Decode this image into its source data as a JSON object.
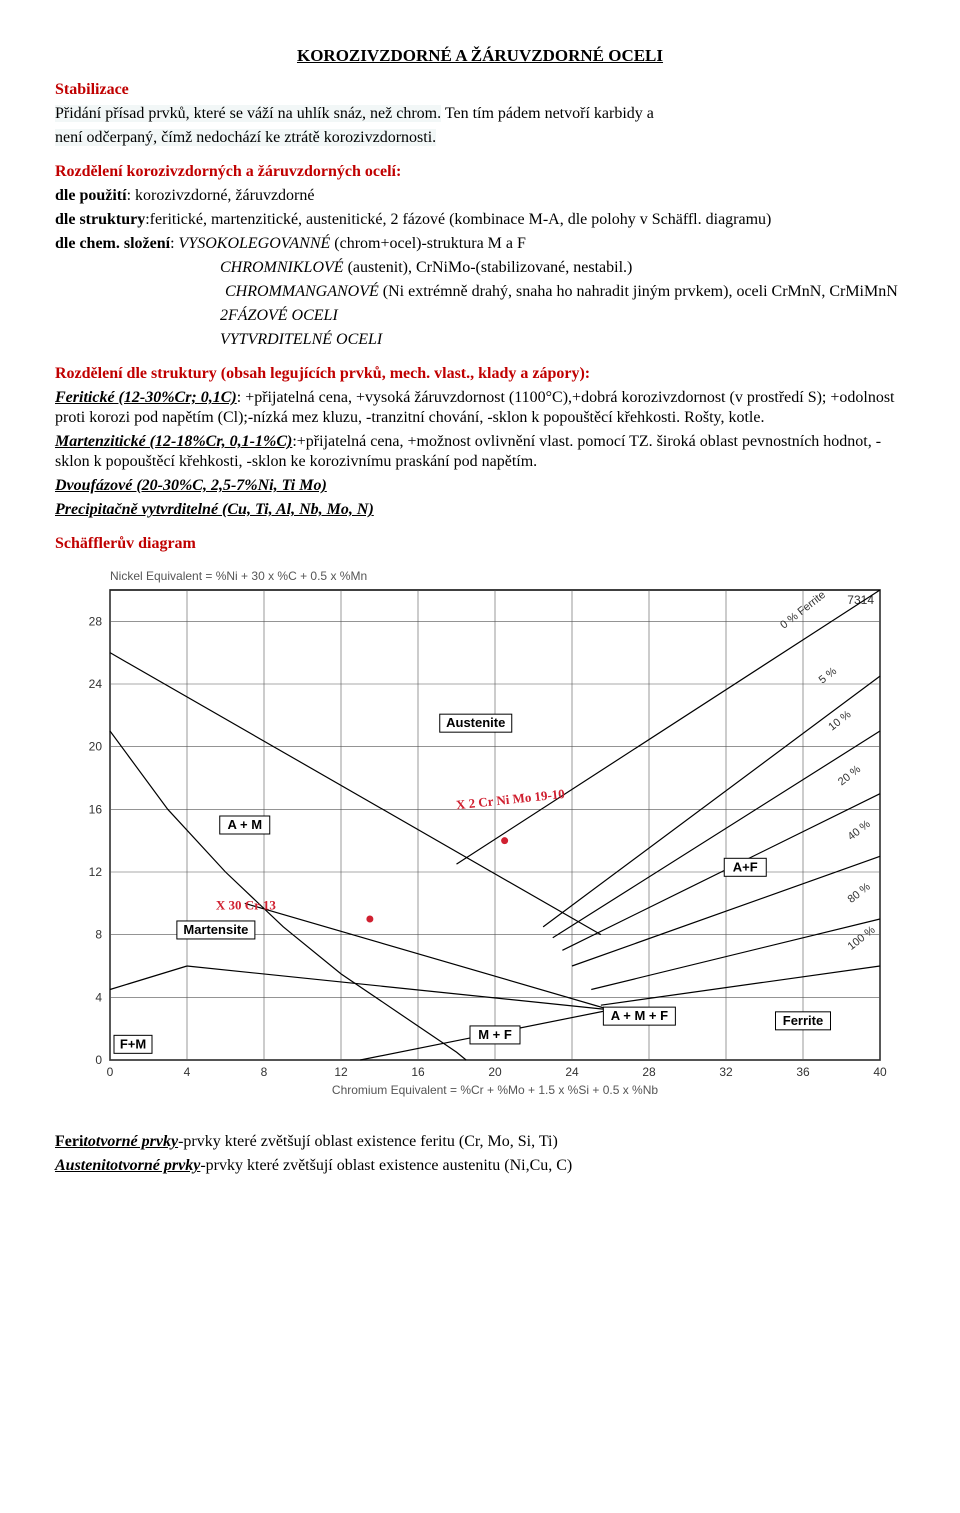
{
  "title": "KOROZIVZDORNÉ A ŽÁRUVZDORNÉ OCELI",
  "stab_h": "Stabilizace",
  "stab_p1": "Přidání přísad prvků, které se váží na uhlík snáz, než chrom.",
  "stab_p2a": "Ten tím pádem netvoří karbidy a",
  "stab_p2b": "není odčerpaný, čímž nedochází ke ztrátě korozivzdornosti.",
  "roz_h": "Rozdělení korozivzdorných a žáruvzdorných ocelí:",
  "roz_l1a": "dle použití",
  "roz_l1b": ": korozivzdorné, žáruvzdorné",
  "roz_l2a": "dle struktury",
  "roz_l2b": ":feritické, martenzitické, austenitické, 2 fázové (kombinace M-A, dle polohy v Schäffl. diagramu)",
  "roz_l3a": "dle chem. složení",
  "roz_l3b": ": ",
  "roz_l3c": "VYSOKOLEGOVANNÉ",
  "roz_l3d": " (chrom+ocel)-struktura M a F",
  "roz_l4a": "CHROMNIKLOVÉ ",
  "roz_l4b": " (austenit), CrNiMo-(stabilizované, nestabil.)",
  "roz_l5a": "CHROMMANGANOVÉ",
  "roz_l5b": " (Ni extrémně drahý, snaha ho nahradit jiným prvkem), oceli CrMnN, CrMiMnN",
  "roz_l6": "2FÁZOVÉ OCELI",
  "roz_l7": "VYTVRDITELNÉ OCELI",
  "rs_h": "Rozdělení dle struktury (obsah legujících prvků, mech. vlast., klady a zápory):",
  "rs_fer_a": "Feritické (12-30%Cr; 0,1C)",
  "rs_fer_b": ": +přijatelná cena, +vysoká žáruvzdornost (1100°C),+dobrá korozivzdornost (v prostředí S); +odolnost proti korozi pod napětím (Cl);-nízká mez kluzu, -tranzitní chování, -sklon k popouštěcí křehkosti. Rošty, kotle.",
  "rs_mar_a": "Martenzitické (12-18%Cr, 0,1-1%C)",
  "rs_mar_b": ":+přijatelná cena, +možnost ovlivnění vlast. pomocí TZ. široká oblast pevnostních hodnot, -sklon k popouštěcí křehkosti, -sklon ke korozivnímu praskání pod napětím.",
  "rs_dvo": "Dvoufázové (20-30%C, 2,5-7%Ni, Ti Mo)",
  "rs_pre": "Precipitačně vytvrditelné (Cu, Ti, Al, Nb, Mo, N)",
  "sd_h": "Schäfflerův diagram",
  "chart": {
    "y_label": "Nickel Equivalent = %Ni + 30 x %C + 0.5 x %Mn",
    "x_label": "Chromium Equivalent = %Cr + %Mo + 1.5 x %Si + 0.5 x %Nb",
    "xlim": [
      0,
      40
    ],
    "ylim": [
      0,
      30
    ],
    "xticks": [
      0,
      4,
      8,
      12,
      16,
      20,
      24,
      28,
      32,
      36,
      40
    ],
    "yticks": [
      0,
      4,
      8,
      12,
      16,
      20,
      24,
      28
    ],
    "grid_color": "#666666",
    "bg": "#ffffff",
    "regions": {
      "austenite": "Austenite",
      "am": "A + M",
      "martensite": "Martensite",
      "fm": "F+M",
      "mf": "M + F",
      "amf": "A + M + F",
      "af": "A+F",
      "ferrite": "Ferrite"
    },
    "ferrite_pct": [
      "0 % Ferrite",
      "5 %",
      "10 %",
      "20 %",
      "40 %",
      "80 %",
      "100 %"
    ],
    "hand": {
      "x30": "X 30 Cr  13",
      "x2": "X 2 Cr Ni Mo 19-10"
    },
    "id7314": "7314"
  },
  "foot1a": "Feri",
  "foot1b": "totvorné prvky",
  "foot1c": "-prvky které zvětšují oblast existence feritu (Cr, Mo, Si, Ti)",
  "foot2a": "Austenitotvorné prvky",
  "foot2b": "-prvky které zvětšují oblast existence austenitu (Ni,Cu, C)"
}
